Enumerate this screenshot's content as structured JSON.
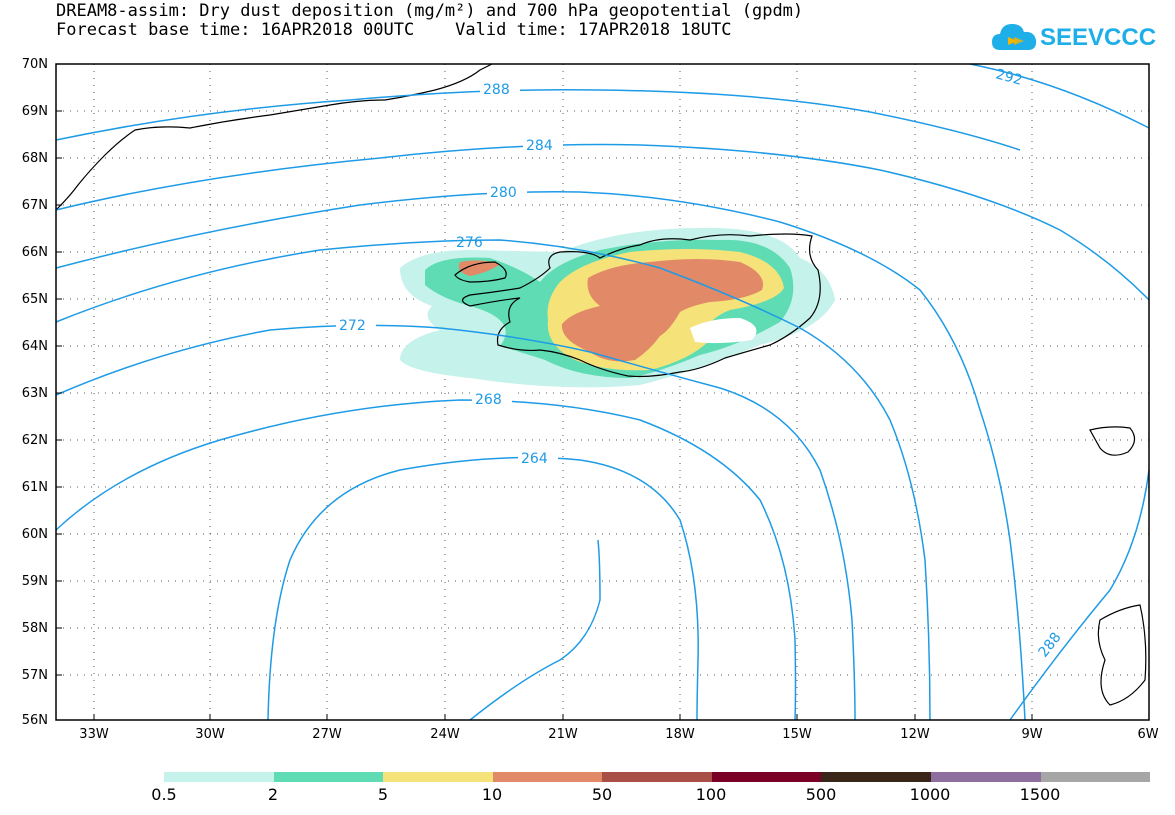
{
  "title": {
    "line1": "DREAM8-assim: Dry dust deposition (mg/m²) and 700 hPa geopotential (gpdm)",
    "line2": "Forecast base time: 16APR2018 00UTC    Valid time: 17APR2018 18UTC"
  },
  "logo": {
    "text": "SEEVCCC",
    "color": "#1eaee8"
  },
  "map": {
    "lat_labels": [
      "70N",
      "69N",
      "68N",
      "67N",
      "66N",
      "65N",
      "64N",
      "63N",
      "62N",
      "61N",
      "60N",
      "59N",
      "58N",
      "57N",
      "56N"
    ],
    "lon_labels": [
      "33W",
      "30W",
      "27W",
      "24W",
      "21W",
      "18W",
      "15W",
      "12W",
      "9W",
      "6W"
    ],
    "contour_color": "#1e9be6",
    "contour_labels": [
      "288",
      "284",
      "280",
      "276",
      "272",
      "268",
      "264",
      "292",
      "288"
    ]
  },
  "colorbar": {
    "labels": [
      "0.5",
      "2",
      "5",
      "10",
      "50",
      "100",
      "500",
      "1000",
      "1500"
    ],
    "colors": [
      "#c6f2ec",
      "#5fdcb4",
      "#f5e37a",
      "#e28a68",
      "#a85045",
      "#7a0025",
      "#3a2618",
      "#8e6e9e",
      "#a6a6a6"
    ]
  }
}
